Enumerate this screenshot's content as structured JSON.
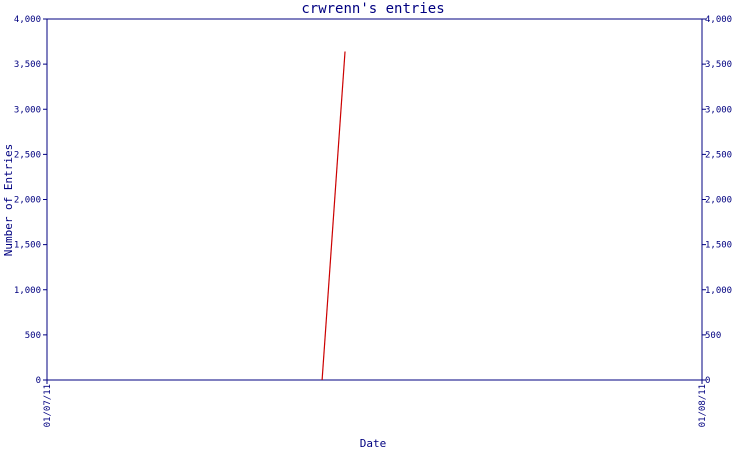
{
  "chart_data": {
    "type": "line",
    "title": "crwrenn's entries",
    "xlabel": "Date",
    "ylabel": "Number of Entries",
    "x_ticks": [
      "01/07/11",
      "01/08/11"
    ],
    "x_range": [
      "01/07/11",
      "01/08/11"
    ],
    "y_ticks": [
      "0",
      "500",
      "1,000",
      "1,500",
      "2,000",
      "2,500",
      "3,000",
      "3,500",
      "4,000"
    ],
    "ylim": [
      0,
      4000
    ],
    "grid": false,
    "series": [
      {
        "color": "#cc0000",
        "points": [
          {
            "x": "01/07/11",
            "x_fraction": 0.42,
            "y": 0
          },
          {
            "x": "01/07/11",
            "x_fraction": 0.455,
            "y": 3640
          }
        ]
      }
    ]
  }
}
